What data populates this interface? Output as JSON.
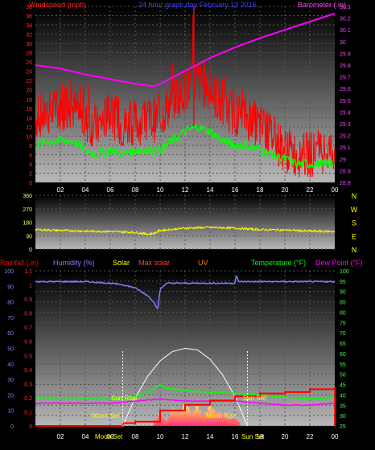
{
  "chart_data": [
    {
      "type": "line",
      "panel": "wind-barometer",
      "title": "24 hour graph day  February 13 2016",
      "ylabel_left": "Windspeed (mph)",
      "ylabel_right": "Barometer (.in)",
      "ylim_left": [
        0,
        38
      ],
      "ylim_right": [
        28.8,
        30.3
      ],
      "left_ticks": [
        "0",
        "2",
        "4",
        "6",
        "8",
        "10",
        "12",
        "14",
        "16",
        "18",
        "20",
        "22",
        "24",
        "26",
        "28",
        "30",
        "32",
        "34",
        "36",
        "38"
      ],
      "right_ticks": [
        "28.8",
        "28.9",
        "29",
        "29.1",
        "29.2",
        "29.3",
        "29.4",
        "29.5",
        "29.6",
        "29.7",
        "29.8",
        "29.9",
        "30",
        "30.1",
        "30.2",
        "30.3"
      ],
      "x_ticks": [
        "02",
        "04",
        "06",
        "08",
        "10",
        "12",
        "14",
        "16",
        "18",
        "20",
        "22",
        "00"
      ],
      "grid": true,
      "series": [
        {
          "name": "Windspeed (mph)",
          "color": "#ff0000",
          "x": [
            0,
            1,
            2,
            3,
            4,
            5,
            6,
            7,
            8,
            9,
            10,
            11,
            12,
            13,
            14,
            15,
            16,
            17,
            18,
            19,
            20,
            21,
            22,
            23,
            24
          ],
          "values": [
            14,
            15,
            16,
            16,
            13,
            12,
            15,
            12,
            13,
            13,
            14,
            18,
            20,
            22,
            20,
            16,
            15,
            14,
            12,
            10,
            7,
            6,
            6,
            7,
            7
          ]
        },
        {
          "name": "Wind gust",
          "color": "#ff0000",
          "x": [
            1,
            3,
            5,
            7,
            9,
            10.5,
            11,
            12,
            12.7,
            13.2,
            14,
            16,
            18,
            20,
            22,
            24
          ],
          "values": [
            20,
            23,
            21,
            19,
            18,
            24,
            26,
            28,
            38,
            31,
            26,
            22,
            17,
            13,
            11,
            10
          ]
        },
        {
          "name": "Average wind",
          "color": "#00ff00",
          "x": [
            0,
            1,
            2,
            3,
            4,
            5,
            6,
            7,
            8,
            9,
            10,
            11,
            12,
            13,
            14,
            15,
            16,
            17,
            18,
            19,
            20,
            21,
            22,
            23,
            24
          ],
          "values": [
            8,
            9,
            9,
            9,
            7,
            6,
            7,
            6,
            7,
            7,
            7,
            9,
            11,
            12,
            11,
            9,
            8,
            8,
            7,
            6,
            5,
            4,
            4,
            4,
            4
          ]
        },
        {
          "name": "Barometer (.in)",
          "color": "#ff00ff",
          "axis": "right",
          "x": [
            0,
            2,
            4,
            6,
            8,
            9.5,
            10,
            12,
            14,
            16,
            18,
            20,
            22,
            24
          ],
          "values": [
            29.8,
            29.77,
            29.72,
            29.68,
            29.64,
            29.62,
            29.64,
            29.75,
            29.86,
            29.95,
            30.03,
            30.1,
            30.17,
            30.24
          ]
        }
      ]
    },
    {
      "type": "line",
      "panel": "wind-direction",
      "ylim": [
        0,
        360
      ],
      "left_ticks": [
        "0",
        "90",
        "180",
        "270",
        "360"
      ],
      "right_labels": [
        "N",
        "W",
        "S",
        "E",
        "N"
      ],
      "x_ticks": [],
      "grid": true,
      "series": [
        {
          "name": "Wind direction",
          "color": "#ffff00",
          "x": [
            0,
            2,
            4,
            6,
            8,
            9,
            9.5,
            10,
            12,
            14,
            16,
            18,
            20,
            22,
            24
          ],
          "values": [
            130,
            125,
            120,
            118,
            112,
            100,
            105,
            125,
            140,
            145,
            140,
            130,
            128,
            120,
            118
          ]
        }
      ]
    },
    {
      "type": "line",
      "panel": "temperature-humidity-solar",
      "legend": [
        "Rainfall (.in)",
        "Humidity (%)",
        "Solar",
        "Max solar",
        "UV",
        "Temperature (°F)",
        "Dew Point (°F)"
      ],
      "legend_colors": [
        "#ff0000",
        "#8080ff",
        "#ffff00",
        "#ff4040",
        "#ff8000",
        "#00ff00",
        "#ff00ff"
      ],
      "ylim_left": [
        0,
        100
      ],
      "ylim_rain": [
        0,
        1.1
      ],
      "ylim_right": [
        25,
        100
      ],
      "left_ticks": [
        "0",
        "10",
        "20",
        "30",
        "40",
        "50",
        "60",
        "70",
        "80",
        "90",
        "100"
      ],
      "rain_ticks": [
        "0",
        "0.1",
        "0.2",
        "0.3",
        "0.4",
        "0.5",
        "0.6",
        "0.7",
        "0.8",
        "0.9",
        "1",
        "1.1"
      ],
      "right_ticks": [
        "25",
        "30",
        "35",
        "40",
        "45",
        "50",
        "55",
        "60",
        "65",
        "70",
        "75",
        "80",
        "85",
        "90",
        "95",
        "100"
      ],
      "x_ticks": [
        "02",
        "04",
        "06",
        "08",
        "10",
        "12",
        "14",
        "16",
        "18",
        "20",
        "22",
        "00"
      ],
      "annotations": [
        "Sun Rise",
        "Sun Set",
        "Moon Set",
        "Moon Rise",
        "Moon Set",
        "Sun Set"
      ],
      "grid": true,
      "series": [
        {
          "name": "Humidity (%)",
          "color": "#7b7bff",
          "x": [
            0,
            2,
            4,
            6,
            7,
            8,
            9,
            9.5,
            9.8,
            10,
            10.5,
            12,
            14,
            15.5,
            16,
            16.1,
            16.3,
            18,
            20,
            22,
            24
          ],
          "values": [
            93,
            93,
            93,
            92,
            91,
            89,
            84,
            80,
            75,
            88,
            92,
            92,
            92,
            92,
            92,
            97,
            93,
            93,
            93,
            93,
            93
          ]
        },
        {
          "name": "Temperature (°F)",
          "color": "#00ff00",
          "x": [
            0,
            2,
            4,
            6,
            8,
            9,
            10,
            10.5,
            11,
            12,
            14,
            16,
            18,
            20,
            22,
            24
          ],
          "values": [
            38,
            38,
            38,
            38,
            39,
            41,
            45,
            43,
            43,
            42,
            41,
            41,
            40,
            39,
            38,
            39
          ]
        },
        {
          "name": "Dew Point (°F)",
          "color": "#ff00ff",
          "x": [
            0,
            2,
            4,
            6,
            8,
            10,
            12,
            14,
            16,
            18,
            20,
            22,
            24
          ],
          "values": [
            36,
            36,
            36,
            36,
            37,
            38,
            37,
            37,
            37,
            36,
            35,
            35,
            36
          ]
        },
        {
          "name": "Rainfall (.in)",
          "color": "#ff0000",
          "axis": "rain",
          "x": [
            0,
            6,
            7,
            8,
            10,
            12,
            14,
            16,
            18,
            20,
            22,
            24,
            24.01
          ],
          "values": [
            0,
            0,
            0.02,
            0.03,
            0.11,
            0.15,
            0.18,
            0.21,
            0.23,
            0.24,
            0.26,
            0.27,
            0
          ]
        },
        {
          "name": "Max solar",
          "color": "#ffffff",
          "x": [
            7,
            8,
            9,
            10,
            11,
            12,
            13,
            14,
            15,
            16,
            17
          ],
          "values": [
            0,
            18,
            32,
            42,
            48,
            50,
            49,
            43,
            33,
            19,
            0
          ]
        },
        {
          "name": "Solar",
          "color": "#ffff00",
          "x": [
            9.5,
            10,
            10.5,
            11,
            11.5,
            12,
            12.5,
            13,
            13.5,
            14,
            14.5,
            15,
            15.5,
            16,
            16.5
          ],
          "values": [
            3,
            8,
            3,
            11,
            8,
            14,
            9,
            12,
            6,
            13,
            8,
            9,
            4,
            5,
            0
          ]
        },
        {
          "name": "UV",
          "color": "#ff8000",
          "x": [
            9.5,
            10,
            10.5,
            11,
            11.5,
            12,
            12.5,
            13,
            13.5,
            14,
            14.5,
            15,
            15.5,
            16,
            16.5
          ],
          "values": [
            1,
            4,
            1,
            6,
            4,
            7,
            4,
            6,
            3,
            7,
            4,
            4,
            2,
            2,
            0
          ]
        }
      ]
    }
  ]
}
